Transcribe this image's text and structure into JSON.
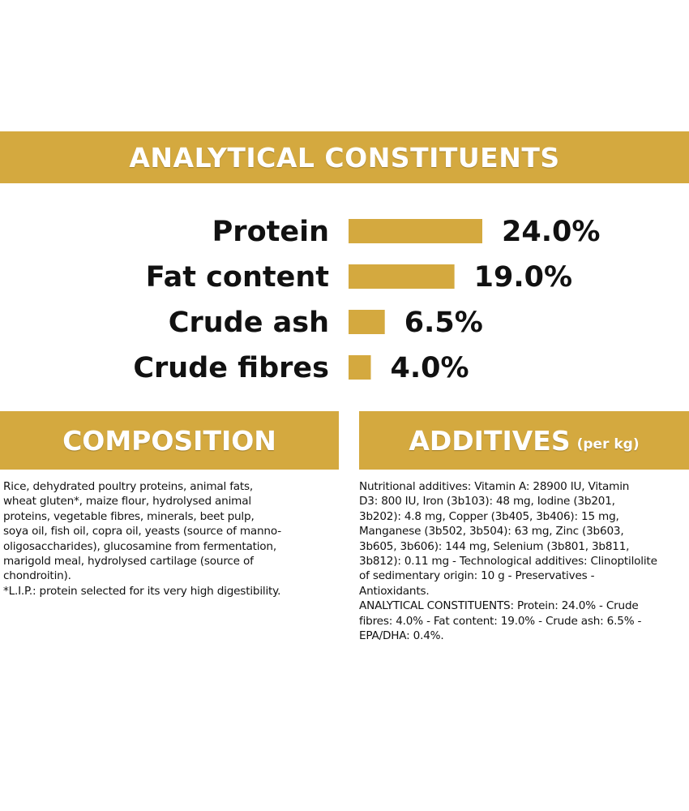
{
  "colors": {
    "accent": "#d4a93f",
    "text": "#111111",
    "banner_text": "#ffffff"
  },
  "analytical_banner": {
    "title": "ANALYTICAL CONSTITUENTS"
  },
  "chart_data": {
    "type": "bar",
    "orientation": "horizontal",
    "categories": [
      "Protein",
      "Fat content",
      "Crude ash",
      "Crude fibres"
    ],
    "values": [
      24.0,
      19.0,
      6.5,
      4.0
    ],
    "value_labels": [
      "24.0%",
      "19.0%",
      "6.5%",
      "4.0%"
    ],
    "unit": "%",
    "xlim": [
      0,
      24
    ],
    "grid": false,
    "bar_color": "#d4a93f"
  },
  "composition": {
    "title": "COMPOSITION",
    "lines": [
      "Rice, dehydrated poultry proteins, animal fats,",
      "wheat gluten*, maize flour, hydrolysed animal",
      "proteins, vegetable fibres, minerals, beet pulp,",
      "soya oil, fish oil, copra oil, yeasts (source of manno-",
      "oligosaccharides), glucosamine from fermentation,",
      "marigold meal, hydrolysed cartilage (source of",
      "chondroitin).",
      "*L.I.P.: protein selected for its very high digestibility."
    ]
  },
  "additives": {
    "title": "ADDITIVES",
    "title_suffix": "(per kg)",
    "lines": [
      "Nutritional additives: Vitamin A: 28900 IU, Vitamin",
      "D3: 800 IU, Iron (3b103): 48 mg, Iodine (3b201,",
      "3b202): 4.8 mg, Copper (3b405, 3b406): 15 mg,",
      "Manganese (3b502, 3b504): 63 mg, Zinc (3b603,",
      "3b605, 3b606): 144 mg, Selenium (3b801, 3b811,",
      "3b812): 0.11 mg - Technological additives: Clinoptilolite",
      "of sedimentary origin: 10 g - Preservatives -",
      "Antioxidants.",
      "ANALYTICAL CONSTITUENTS: Protein: 24.0% - Crude",
      "fibres: 4.0% - Fat content: 19.0% - Crude ash: 6.5% -",
      "EPA/DHA: 0.4%."
    ]
  }
}
